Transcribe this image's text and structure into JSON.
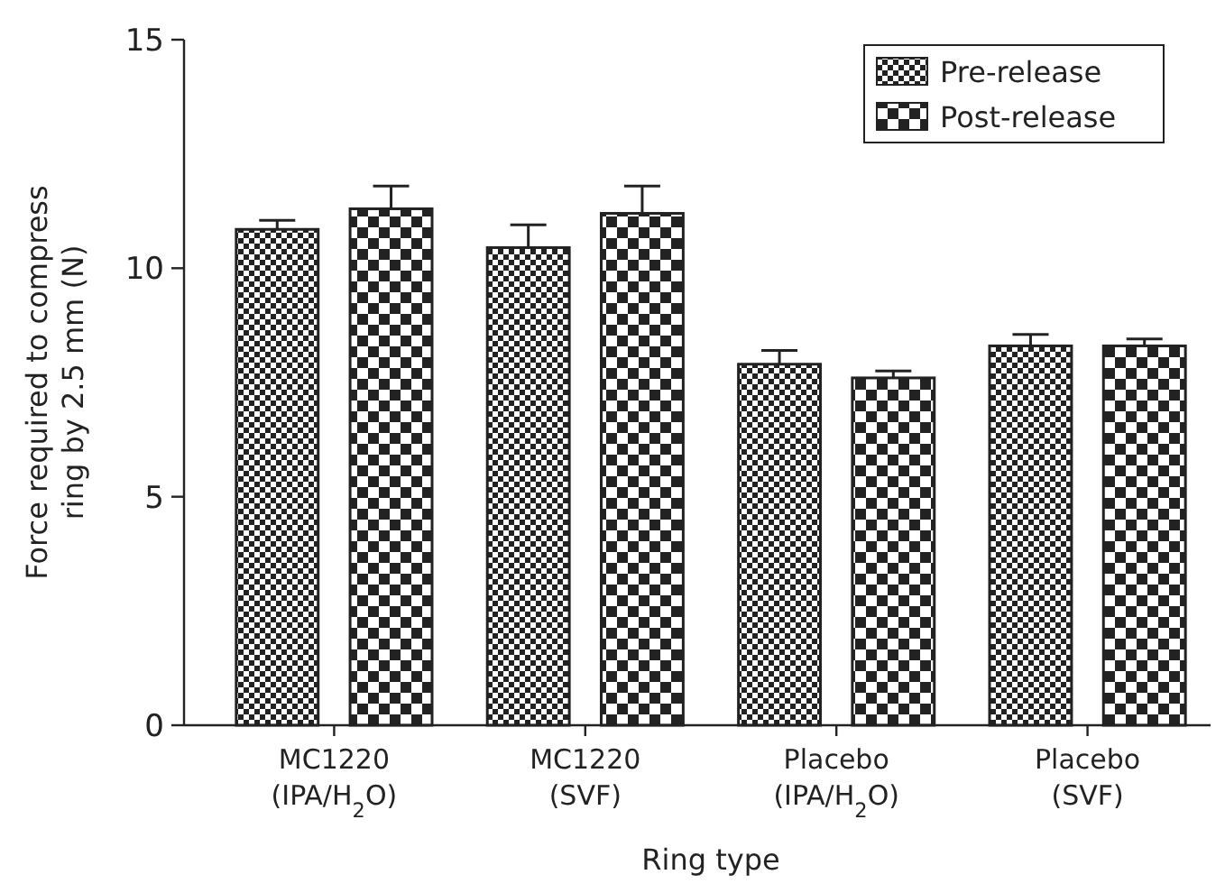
{
  "chart_data": {
    "type": "bar",
    "xlabel": "Ring type",
    "ylabel": "Force required to compress\nring by 2.5 mm (N)",
    "categories": [
      "MC1220\n(IPA/H$_{2}$O)",
      "MC1220\n(SVF)",
      "Placebo\n(IPA/H$_{2}$O)",
      "Placebo\n(SVF)"
    ],
    "series": [
      {
        "name": "Pre-release",
        "color": "#222222",
        "values": [
          10.85,
          10.45,
          7.9,
          8.3
        ],
        "errors": [
          0.2,
          0.5,
          0.3,
          0.25
        ]
      },
      {
        "name": "Post-release",
        "color": "#222222",
        "values": [
          11.3,
          11.2,
          7.6,
          8.3
        ],
        "errors": [
          0.5,
          0.6,
          0.15,
          0.15
        ]
      }
    ],
    "ylim": [
      0,
      15
    ],
    "yticks": [
      0,
      5,
      10,
      15
    ],
    "legend": "top right",
    "grid": false
  }
}
